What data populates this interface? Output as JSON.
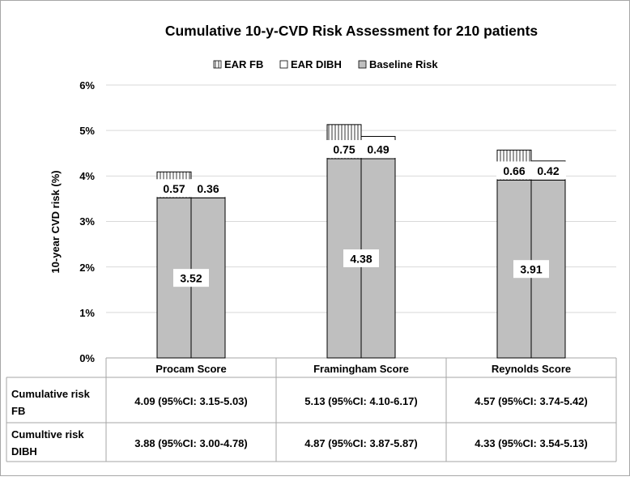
{
  "chart_data": {
    "type": "bar",
    "title": "Cumulative 10-y-CVD Risk Assessment for 210 patients",
    "ylabel": "10-year CVD risk (%)",
    "xlabel": "",
    "ylim": [
      0,
      6
    ],
    "yticks": [
      "0%",
      "1%",
      "2%",
      "3%",
      "4%",
      "5%",
      "6%"
    ],
    "grid": true,
    "legend_position": "top",
    "legend": [
      {
        "name": "EAR FB",
        "pattern": "hatched"
      },
      {
        "name": "EAR DIBH",
        "pattern": "white"
      },
      {
        "name": "Baseline Risk",
        "pattern": "gray"
      }
    ],
    "categories": [
      "Procam Score",
      "Framingham Score",
      "Reynolds Score"
    ],
    "series": [
      {
        "name": "Baseline Risk",
        "values": [
          3.52,
          4.38,
          3.91
        ]
      },
      {
        "name": "EAR FB",
        "values": [
          0.57,
          0.75,
          0.66
        ]
      },
      {
        "name": "EAR DIBH",
        "values": [
          0.36,
          0.49,
          0.42
        ]
      }
    ],
    "baseline_labels": [
      "3.52",
      "4.38",
      "3.91"
    ],
    "fb_labels": [
      "0.57",
      "0.75",
      "0.66"
    ],
    "dibh_labels": [
      "0.36",
      "0.49",
      "0.42"
    ],
    "table": {
      "row_headers": [
        [
          "Cumulative risk",
          "FB"
        ],
        [
          "Cumultive risk",
          "DIBH"
        ]
      ],
      "rows": [
        [
          "4.09 (95%CI: 3.15-5.03)",
          "5.13 (95%CI: 4.10-6.17)",
          "4.57 (95%CI: 3.74-5.42)"
        ],
        [
          "3.88 (95%CI: 3.00-4.78)",
          "4.87 (95%CI: 3.87-5.87)",
          "4.33 (95%CI: 3.54-5.13)"
        ]
      ]
    },
    "colors": {
      "baseline": "#bfbfbf",
      "bar_edge": "#000000",
      "grid": "#d9d9d9",
      "axis": "#a6a6a6",
      "text": "#000000"
    }
  }
}
